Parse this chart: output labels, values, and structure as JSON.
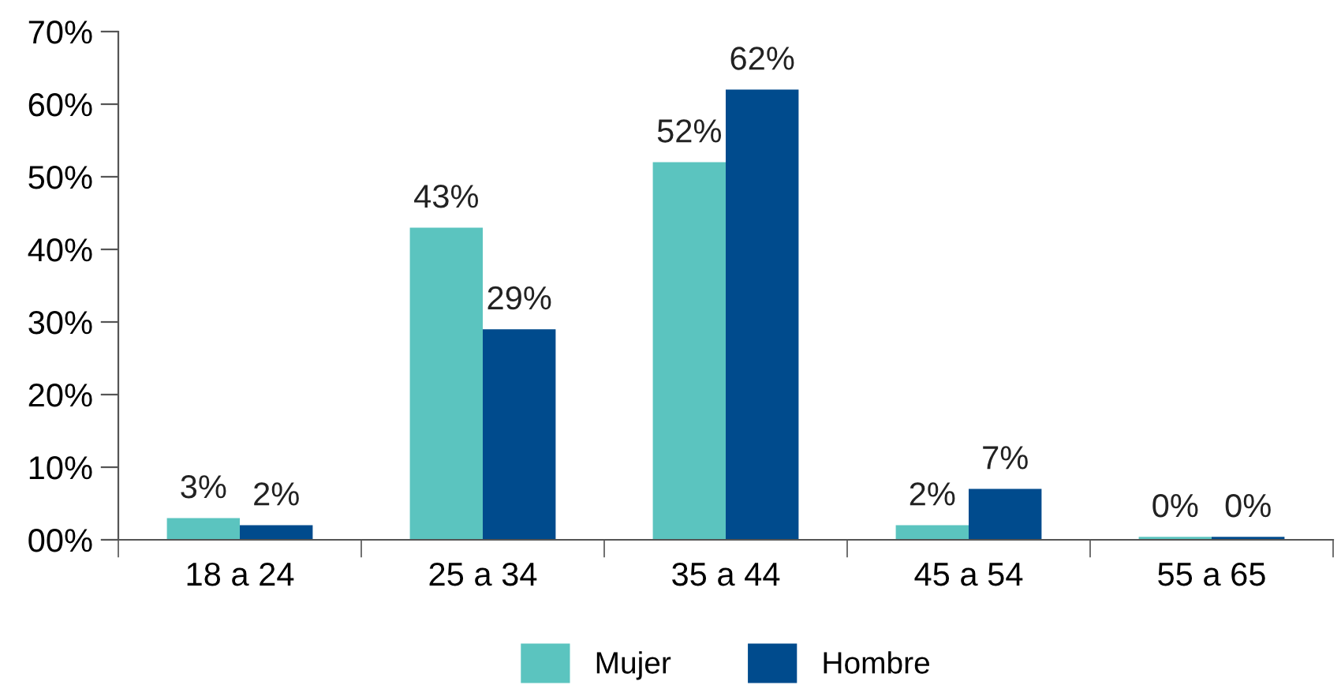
{
  "chart_data": {
    "type": "bar",
    "categories": [
      "18 a 24",
      "25 a 34",
      "35 a 44",
      "45 a 54",
      "55 a 65"
    ],
    "series": [
      {
        "name": "Mujer",
        "color": "#5bc4bf",
        "values": [
          3,
          43,
          52,
          2,
          0.4
        ],
        "value_labels": [
          "3%",
          "43%",
          "52%",
          "2%",
          "0%"
        ]
      },
      {
        "name": "Hombre",
        "color": "#004b8d",
        "values": [
          2,
          29,
          62,
          7,
          0.4
        ],
        "value_labels": [
          "2%",
          "29%",
          "62%",
          "7%",
          "0%"
        ]
      }
    ],
    "ylim": [
      0,
      70
    ],
    "yticks": [
      {
        "value": 0,
        "label": "00%"
      },
      {
        "value": 10,
        "label": "10%"
      },
      {
        "value": 20,
        "label": "20%"
      },
      {
        "value": 30,
        "label": "30%"
      },
      {
        "value": 40,
        "label": "40%"
      },
      {
        "value": 50,
        "label": "50%"
      },
      {
        "value": 60,
        "label": "60%"
      },
      {
        "value": 70,
        "label": "70%"
      }
    ],
    "grid": false,
    "legend": "bottom"
  }
}
